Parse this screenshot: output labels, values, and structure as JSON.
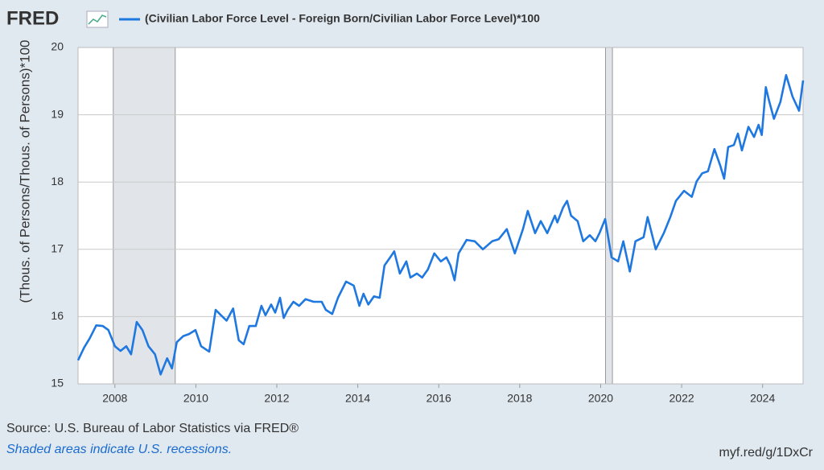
{
  "logo": "FRED",
  "source": "Source: U.S. Bureau of Labor Statistics via FRED®",
  "note": "Shaded areas indicate U.S. recessions.",
  "url": "myf.red/g/1DxCr",
  "chart_data": {
    "type": "line",
    "ylabel": "(Thous. of Persons/Thous. of Persons)*100",
    "xlim": [
      2007.09,
      2025.0
    ],
    "xticks": [
      2008,
      2010,
      2012,
      2014,
      2016,
      2018,
      2020,
      2022,
      2024
    ],
    "ylim": [
      15,
      20
    ],
    "yticks": [
      15,
      16,
      17,
      18,
      19,
      20
    ],
    "grid": true,
    "recessions": [
      [
        2007.96,
        2009.49
      ],
      [
        2020.12,
        2020.29
      ]
    ],
    "x": [
      2007.09,
      2007.24,
      2007.38,
      2007.54,
      2007.7,
      2007.84,
      2008.0,
      2008.14,
      2008.28,
      2008.4,
      2008.54,
      2008.68,
      2008.83,
      2008.99,
      2009.13,
      2009.29,
      2009.41,
      2009.53,
      2009.69,
      2009.83,
      2009.99,
      2010.13,
      2010.33,
      2010.49,
      2010.62,
      2010.76,
      2010.92,
      2011.06,
      2011.18,
      2011.32,
      2011.48,
      2011.62,
      2011.72,
      2011.86,
      2011.96,
      2012.08,
      2012.17,
      2012.27,
      2012.41,
      2012.55,
      2012.71,
      2012.91,
      2013.11,
      2013.21,
      2013.37,
      2013.51,
      2013.71,
      2013.9,
      2014.04,
      2014.14,
      2014.26,
      2014.4,
      2014.54,
      2014.66,
      2014.8,
      2014.9,
      2015.04,
      2015.2,
      2015.3,
      2015.46,
      2015.59,
      2015.73,
      2015.89,
      2016.05,
      2016.19,
      2016.29,
      2016.39,
      2016.49,
      2016.69,
      2016.89,
      2017.09,
      2017.32,
      2017.48,
      2017.68,
      2017.88,
      2018.08,
      2018.2,
      2018.38,
      2018.52,
      2018.68,
      2018.87,
      2018.93,
      2019.07,
      2019.17,
      2019.27,
      2019.43,
      2019.57,
      2019.73,
      2019.87,
      2019.97,
      2020.11,
      2020.27,
      2020.43,
      2020.56,
      2020.72,
      2020.86,
      2021.06,
      2021.16,
      2021.36,
      2021.56,
      2021.72,
      2021.86,
      2022.06,
      2022.25,
      2022.37,
      2022.51,
      2022.65,
      2022.81,
      2022.95,
      2023.05,
      2023.15,
      2023.29,
      2023.39,
      2023.49,
      2023.65,
      2023.79,
      2023.9,
      2023.98,
      2024.08,
      2024.16,
      2024.28,
      2024.44,
      2024.58,
      2024.74,
      2024.9,
      2025.0
    ],
    "series": [
      {
        "name": "(Civilian Labor Force Level - Foreign Born/Civilian Labor Force Level)*100",
        "color": "#1f78e0",
        "values": [
          15.35,
          15.54,
          15.68,
          15.87,
          15.86,
          15.8,
          15.56,
          15.49,
          15.56,
          15.44,
          15.92,
          15.8,
          15.56,
          15.44,
          15.14,
          15.38,
          15.23,
          15.62,
          15.71,
          15.74,
          15.8,
          15.56,
          15.48,
          16.1,
          16.02,
          15.94,
          16.12,
          15.65,
          15.59,
          15.86,
          15.86,
          16.16,
          16.02,
          16.18,
          16.06,
          16.28,
          15.98,
          16.1,
          16.22,
          16.16,
          16.26,
          16.22,
          16.22,
          16.1,
          16.04,
          16.28,
          16.52,
          16.46,
          16.16,
          16.34,
          16.18,
          16.3,
          16.28,
          16.76,
          16.88,
          16.97,
          16.64,
          16.82,
          16.58,
          16.64,
          16.58,
          16.7,
          16.94,
          16.82,
          16.88,
          16.76,
          16.54,
          16.94,
          17.14,
          17.12,
          17.0,
          17.12,
          17.15,
          17.3,
          16.94,
          17.3,
          17.57,
          17.24,
          17.42,
          17.24,
          17.5,
          17.4,
          17.62,
          17.72,
          17.5,
          17.42,
          17.12,
          17.21,
          17.12,
          17.24,
          17.45,
          16.88,
          16.82,
          17.12,
          16.67,
          17.12,
          17.18,
          17.48,
          17.0,
          17.24,
          17.48,
          17.72,
          17.87,
          17.78,
          18.01,
          18.13,
          18.16,
          18.49,
          18.25,
          18.05,
          18.52,
          18.55,
          18.72,
          18.47,
          18.82,
          18.67,
          18.85,
          18.7,
          19.41,
          19.21,
          18.94,
          19.19,
          19.59,
          19.27,
          19.06,
          19.51
        ]
      }
    ]
  }
}
